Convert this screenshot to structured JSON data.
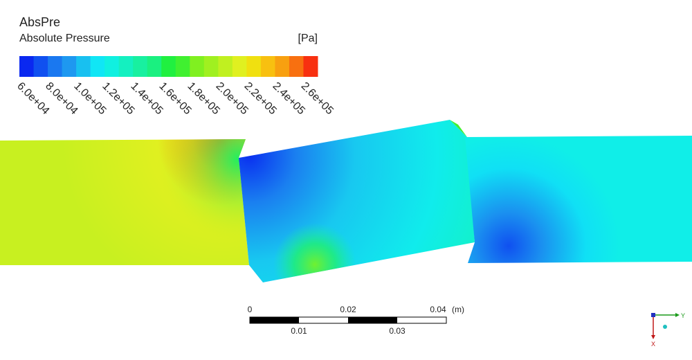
{
  "legend": {
    "title": "AbsPre",
    "subtitle": "Absolute Pressure",
    "unit": "[Pa]",
    "colors": [
      "#0a28f0",
      "#1050f0",
      "#1a78f0",
      "#1e98f0",
      "#18c0f0",
      "#10e6f5",
      "#10f0e0",
      "#14f0c0",
      "#18f0a0",
      "#1af080",
      "#20f040",
      "#40f030",
      "#80f020",
      "#a0f020",
      "#c0f020",
      "#e0f020",
      "#f0e010",
      "#f8c010",
      "#f8a010",
      "#f87010",
      "#f83010"
    ],
    "ticks": [
      "6.0e+04",
      "8.0e+04",
      "1.0e+05",
      "1.2e+05",
      "1.4e+05",
      "1.6e+05",
      "1.8e+05",
      "2.0e+05",
      "2.2e+05",
      "2.4e+05",
      "2.6e+05"
    ]
  },
  "scale_bar": {
    "top_labels": [
      "0",
      "0.02",
      "0.04"
    ],
    "bottom_labels": [
      "0.01",
      "0.03"
    ],
    "unit": "(m)"
  },
  "axes": {
    "y": "Y",
    "x": "X"
  }
}
